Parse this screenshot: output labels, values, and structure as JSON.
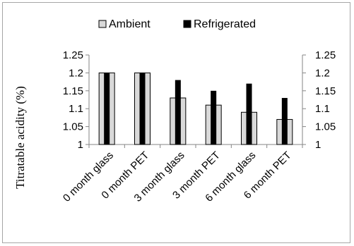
{
  "chart_data": {
    "type": "bar",
    "categories": [
      "0 month glass",
      "0 month PET",
      "3 month glass",
      "3 month PET",
      "6 month glass",
      "6 month PET"
    ],
    "series": [
      {
        "name": "Ambient",
        "values": [
          1.2,
          1.2,
          1.13,
          1.11,
          1.09,
          1.07
        ],
        "color": "#d9d9d9"
      },
      {
        "name": "Refrigerated",
        "values": [
          1.2,
          1.2,
          1.18,
          1.15,
          1.17,
          1.13
        ],
        "color": "#000000"
      }
    ],
    "title": "",
    "xlabel": "",
    "ylabel": "Titratable acidity  (%)",
    "ylim": [
      1,
      1.25
    ],
    "yticks": [
      "1",
      "1.05",
      "1.1",
      "1.15",
      "1.2",
      "1.25"
    ],
    "secondary_yticks": [
      "1",
      "1.05",
      "1.1",
      "1.15",
      "1.2",
      "1.25"
    ],
    "grid": false,
    "legend_position": "top"
  }
}
